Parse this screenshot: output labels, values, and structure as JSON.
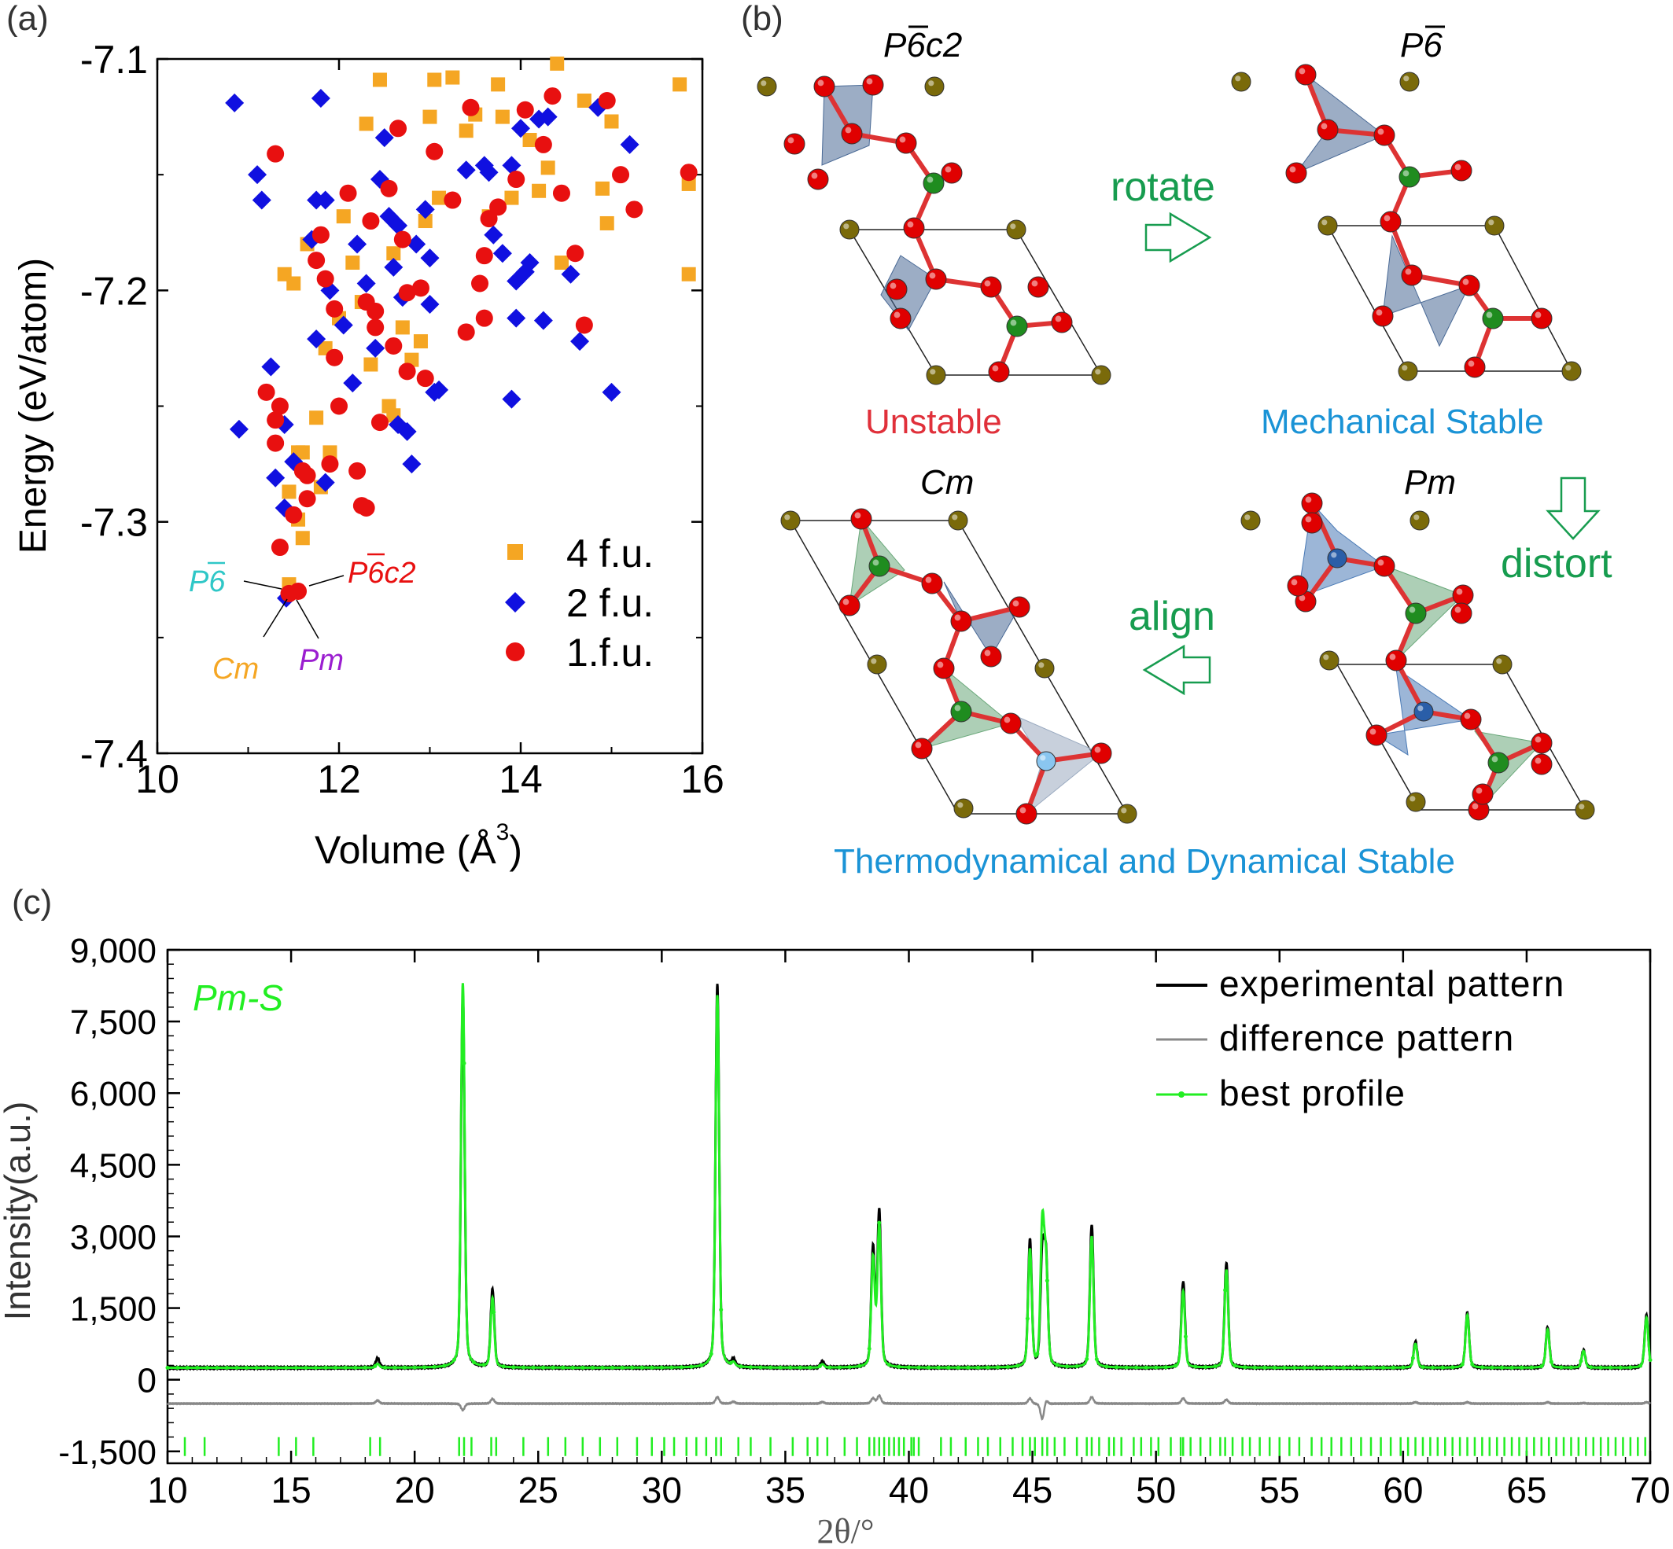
{
  "panels": {
    "a": {
      "label": "(a)"
    },
    "b": {
      "label": "(b)"
    },
    "c": {
      "label": "(c)"
    }
  },
  "colors": {
    "orange": "#f5a623",
    "blue": "#1010e0",
    "red": "#e81010",
    "green_text": "#179c4f",
    "blue_text": "#1a93d6",
    "unstable_red": "#e0303a",
    "best_profile": "#22ee22",
    "difference": "#888888",
    "experimental": "#000000",
    "atom_olive": "#7a6a0a",
    "atom_red": "#e00000",
    "atom_green": "#1f8c1f",
    "tetra_blue": "#4a6a96",
    "tetra_green": "#6aa87a"
  },
  "chart_data": [
    {
      "type": "scatter",
      "panel": "a",
      "title": "",
      "xlabel": "Volume (Å³)",
      "ylabel": "Energy (eV/atom)",
      "xlim": [
        10,
        16
      ],
      "ylim": [
        -7.4,
        -7.1
      ],
      "xticks": [
        10,
        12,
        14,
        16
      ],
      "yticks": [
        -7.1,
        -7.2,
        -7.3,
        -7.4
      ],
      "xtick_labels": [
        "10",
        "12",
        "14",
        "16"
      ],
      "ytick_labels": [
        "-7.1",
        "-7.2",
        "-7.3",
        "-7.4"
      ],
      "legend_position": "bottom-right",
      "series": [
        {
          "name": "4 f.u.",
          "marker": "square",
          "color": "#f5a623",
          "points": [
            [
              11.4,
              -7.193
            ],
            [
              11.5,
              -7.197
            ],
            [
              11.65,
              -7.18
            ],
            [
              11.6,
              -7.27
            ],
            [
              11.75,
              -7.255
            ],
            [
              11.9,
              -7.27
            ],
            [
              11.8,
              -7.285
            ],
            [
              11.45,
              -7.287
            ],
            [
              11.55,
              -7.299
            ],
            [
              11.6,
              -7.307
            ],
            [
              12.05,
              -7.168
            ],
            [
              11.85,
              -7.225
            ],
            [
              12.0,
              -7.212
            ],
            [
              12.15,
              -7.188
            ],
            [
              12.25,
              -7.205
            ],
            [
              12.35,
              -7.232
            ],
            [
              12.3,
              -7.128
            ],
            [
              12.45,
              -7.109
            ],
            [
              12.6,
              -7.184
            ],
            [
              12.7,
              -7.216
            ],
            [
              12.8,
              -7.23
            ],
            [
              12.9,
              -7.222
            ],
            [
              12.95,
              -7.17
            ],
            [
              13.0,
              -7.125
            ],
            [
              13.05,
              -7.109
            ],
            [
              13.1,
              -7.16
            ],
            [
              13.25,
              -7.108
            ],
            [
              13.4,
              -7.131
            ],
            [
              13.5,
              -7.124
            ],
            [
              13.65,
              -7.168
            ],
            [
              13.75,
              -7.111
            ],
            [
              13.8,
              -7.125
            ],
            [
              13.9,
              -7.16
            ],
            [
              14.1,
              -7.135
            ],
            [
              14.2,
              -7.157
            ],
            [
              14.3,
              -7.147
            ],
            [
              14.4,
              -7.102
            ],
            [
              14.45,
              -7.188
            ],
            [
              14.7,
              -7.118
            ],
            [
              14.9,
              -7.156
            ],
            [
              14.95,
              -7.171
            ],
            [
              15.0,
              -7.127
            ],
            [
              15.75,
              -7.111
            ],
            [
              15.85,
              -7.193
            ],
            [
              15.85,
              -7.154
            ],
            [
              12.55,
              -7.25
            ],
            [
              12.6,
              -7.254
            ],
            [
              11.55,
              -7.27
            ],
            [
              11.45,
              -7.327
            ]
          ]
        },
        {
          "name": "2 f.u.",
          "marker": "diamond",
          "color": "#1010e0",
          "points": [
            [
              10.85,
              -7.119
            ],
            [
              11.1,
              -7.15
            ],
            [
              11.15,
              -7.161
            ],
            [
              10.9,
              -7.26
            ],
            [
              11.25,
              -7.233
            ],
            [
              11.3,
              -7.281
            ],
            [
              11.4,
              -7.258
            ],
            [
              11.4,
              -7.294
            ],
            [
              11.5,
              -7.274
            ],
            [
              11.7,
              -7.178
            ],
            [
              11.75,
              -7.161
            ],
            [
              11.8,
              -7.117
            ],
            [
              11.85,
              -7.161
            ],
            [
              11.9,
              -7.2
            ],
            [
              11.75,
              -7.221
            ],
            [
              11.85,
              -7.283
            ],
            [
              12.05,
              -7.215
            ],
            [
              12.15,
              -7.24
            ],
            [
              12.2,
              -7.18
            ],
            [
              12.3,
              -7.197
            ],
            [
              12.4,
              -7.225
            ],
            [
              12.45,
              -7.152
            ],
            [
              12.5,
              -7.134
            ],
            [
              12.55,
              -7.168
            ],
            [
              12.6,
              -7.19
            ],
            [
              12.65,
              -7.172
            ],
            [
              12.7,
              -7.203
            ],
            [
              12.75,
              -7.261
            ],
            [
              12.8,
              -7.275
            ],
            [
              12.85,
              -7.18
            ],
            [
              12.95,
              -7.165
            ],
            [
              13.0,
              -7.186
            ],
            [
              13.0,
              -7.206
            ],
            [
              13.05,
              -7.244
            ],
            [
              13.1,
              -7.243
            ],
            [
              13.4,
              -7.148
            ],
            [
              13.6,
              -7.146
            ],
            [
              13.65,
              -7.149
            ],
            [
              13.7,
              -7.176
            ],
            [
              13.8,
              -7.184
            ],
            [
              13.9,
              -7.146
            ],
            [
              13.95,
              -7.196
            ],
            [
              14.0,
              -7.13
            ],
            [
              14.05,
              -7.192
            ],
            [
              14.1,
              -7.188
            ],
            [
              14.2,
              -7.126
            ],
            [
              14.25,
              -7.213
            ],
            [
              14.3,
              -7.125
            ],
            [
              14.55,
              -7.193
            ],
            [
              14.65,
              -7.222
            ],
            [
              14.85,
              -7.121
            ],
            [
              15.0,
              -7.244
            ],
            [
              15.2,
              -7.137
            ],
            [
              12.65,
              -7.258
            ],
            [
              13.9,
              -7.247
            ],
            [
              13.95,
              -7.212
            ],
            [
              11.42,
              -7.333
            ]
          ]
        },
        {
          "name": "1.f.u.",
          "marker": "circle",
          "color": "#e81010",
          "points": [
            [
              11.3,
              -7.141
            ],
            [
              11.2,
              -7.244
            ],
            [
              11.3,
              -7.256
            ],
            [
              11.35,
              -7.25
            ],
            [
              11.3,
              -7.266
            ],
            [
              11.35,
              -7.311
            ],
            [
              11.5,
              -7.297
            ],
            [
              11.6,
              -7.278
            ],
            [
              11.65,
              -7.28
            ],
            [
              11.65,
              -7.29
            ],
            [
              11.75,
              -7.187
            ],
            [
              11.8,
              -7.176
            ],
            [
              11.85,
              -7.195
            ],
            [
              11.9,
              -7.275
            ],
            [
              11.95,
              -7.229
            ],
            [
              12.0,
              -7.25
            ],
            [
              12.1,
              -7.158
            ],
            [
              12.2,
              -7.278
            ],
            [
              12.25,
              -7.293
            ],
            [
              12.3,
              -7.294
            ],
            [
              12.35,
              -7.17
            ],
            [
              12.4,
              -7.209
            ],
            [
              12.4,
              -7.216
            ],
            [
              12.45,
              -7.257
            ],
            [
              12.55,
              -7.156
            ],
            [
              12.6,
              -7.224
            ],
            [
              12.65,
              -7.13
            ],
            [
              12.7,
              -7.178
            ],
            [
              12.75,
              -7.201
            ],
            [
              12.75,
              -7.235
            ],
            [
              12.9,
              -7.199
            ],
            [
              12.95,
              -7.238
            ],
            [
              13.05,
              -7.14
            ],
            [
              13.25,
              -7.161
            ],
            [
              13.4,
              -7.218
            ],
            [
              13.45,
              -7.121
            ],
            [
              13.55,
              -7.197
            ],
            [
              13.6,
              -7.212
            ],
            [
              13.6,
              -7.185
            ],
            [
              13.65,
              -7.169
            ],
            [
              13.75,
              -7.164
            ],
            [
              13.95,
              -7.152
            ],
            [
              14.05,
              -7.122
            ],
            [
              14.25,
              -7.137
            ],
            [
              14.35,
              -7.116
            ],
            [
              14.45,
              -7.158
            ],
            [
              14.6,
              -7.184
            ],
            [
              14.7,
              -7.215
            ],
            [
              14.95,
              -7.118
            ],
            [
              15.1,
              -7.15
            ],
            [
              15.25,
              -7.165
            ],
            [
              15.85,
              -7.149
            ],
            [
              12.3,
              -7.205
            ],
            [
              11.95,
              -7.208
            ],
            [
              11.55,
              -7.33
            ],
            [
              11.45,
              -7.331
            ]
          ]
        }
      ],
      "annotations": [
        {
          "text": "P6̄",
          "color": "#2fc7c7",
          "at": [
            11.42,
            -7.331
          ]
        },
        {
          "text": "P6̄c2",
          "color": "#e81010",
          "at": [
            11.55,
            -7.33
          ]
        },
        {
          "text": "Cm",
          "color": "#f5a623",
          "at": [
            11.45,
            -7.332
          ]
        },
        {
          "text": "Pm",
          "color": "#9b1ed0",
          "at": [
            11.5,
            -7.333
          ]
        }
      ]
    },
    {
      "type": "line",
      "panel": "c",
      "title": "",
      "xlabel": "2θ/°",
      "ylabel": "Intensity(a.u.)",
      "xlim": [
        10,
        70
      ],
      "ylim": [
        -1750,
        9000
      ],
      "xticks": [
        10,
        15,
        20,
        25,
        30,
        35,
        40,
        45,
        50,
        55,
        60,
        65,
        70
      ],
      "yticks": [
        -1500,
        0,
        1500,
        3000,
        4500,
        6000,
        7500,
        9000
      ],
      "ytick_labels": [
        "-1,500",
        "0",
        "1,500",
        "3,000",
        "4,500",
        "6,000",
        "7,500",
        "9,000"
      ],
      "legend_position": "top-right",
      "baseline": 250,
      "difference_offset": -500,
      "tick_mark_y": -1400,
      "series": [
        {
          "name": "experimental pattern",
          "color": "#000000"
        },
        {
          "name": "difference pattern",
          "color": "#888888"
        },
        {
          "name": "best profile",
          "color": "#22ee22"
        }
      ],
      "peaks": [
        {
          "x": 18.5,
          "exp": 450,
          "fit": 330
        },
        {
          "x": 21.95,
          "exp": 8050,
          "fit": 8300
        },
        {
          "x": 23.15,
          "exp": 1880,
          "fit": 1700
        },
        {
          "x": 32.25,
          "exp": 8300,
          "fit": 8050
        },
        {
          "x": 32.9,
          "exp": 400,
          "fit": 330
        },
        {
          "x": 36.5,
          "exp": 380,
          "fit": 320
        },
        {
          "x": 38.55,
          "exp": 2700,
          "fit": 2500
        },
        {
          "x": 38.8,
          "exp": 3500,
          "fit": 3200
        },
        {
          "x": 44.9,
          "exp": 2900,
          "fit": 2700
        },
        {
          "x": 45.4,
          "exp": 2550,
          "fit": 3150
        },
        {
          "x": 45.55,
          "exp": 2450,
          "fit": 2300
        },
        {
          "x": 47.4,
          "exp": 3250,
          "fit": 3000
        },
        {
          "x": 51.1,
          "exp": 2050,
          "fit": 1850
        },
        {
          "x": 52.85,
          "exp": 2450,
          "fit": 2300
        },
        {
          "x": 60.5,
          "exp": 800,
          "fit": 750
        },
        {
          "x": 62.6,
          "exp": 1400,
          "fit": 1350
        },
        {
          "x": 65.85,
          "exp": 1100,
          "fit": 1050
        },
        {
          "x": 67.3,
          "exp": 620,
          "fit": 600
        },
        {
          "x": 69.85,
          "exp": 1350,
          "fit": 1300
        }
      ],
      "reflection_ticks": [
        10.7,
        11.5,
        14.5,
        15.2,
        15.9,
        18.2,
        18.6,
        21.8,
        22.0,
        22.3,
        23.1,
        23.3,
        24.4,
        25.4,
        26.1,
        26.8,
        27.5,
        28.2,
        29.0,
        29.6,
        30.1,
        30.5,
        31.0,
        31.4,
        31.8,
        32.2,
        32.4,
        33.1,
        33.6,
        34.4,
        35.3,
        35.9,
        36.3,
        36.7,
        37.4,
        37.9,
        38.4,
        38.6,
        38.8,
        39.0,
        39.2,
        39.4,
        39.6,
        39.8,
        40.1,
        40.2,
        40.4,
        41.3,
        41.7,
        42.3,
        42.8,
        43.2,
        43.7,
        44.2,
        44.6,
        44.9,
        45.1,
        45.4,
        45.6,
        45.9,
        46.3,
        46.8,
        47.2,
        47.4,
        47.7,
        48.1,
        48.3,
        48.6,
        49.1,
        49.4,
        49.8,
        50.1,
        50.6,
        51.0,
        51.1,
        51.4,
        51.8,
        52.2,
        52.6,
        52.8,
        53.1,
        53.5,
        53.8,
        54.2,
        54.6,
        55.0,
        55.4,
        55.8,
        56.3,
        56.7,
        57.1,
        57.5,
        57.9,
        58.3,
        58.7,
        59.1,
        59.5,
        59.9,
        60.2,
        60.5,
        60.8,
        61.1,
        61.4,
        61.7,
        62.0,
        62.3,
        62.6,
        62.9,
        63.2,
        63.5,
        63.8,
        64.1,
        64.4,
        64.7,
        65.0,
        65.3,
        65.6,
        65.9,
        66.2,
        66.5,
        66.8,
        67.1,
        67.4,
        67.7,
        68.0,
        68.3,
        68.6,
        68.9,
        69.2,
        69.5,
        69.8
      ]
    }
  ],
  "panel_a": {
    "xlabel": "Volume (Å",
    "xlabel_sup": "3",
    "xlabel_end": ")",
    "ylabel": "Energy (eV/atom)",
    "legend": [
      "4 f.u.",
      "2 f.u.",
      "1.f.u."
    ],
    "ann_p6": "P6",
    "ann_p6c2": "P6c2",
    "ann_cm": "Cm",
    "ann_pm": "Pm"
  },
  "panel_b": {
    "titles": {
      "p6c2": "P6c2",
      "p6": "P6",
      "cm": "Cm",
      "pm": "Pm"
    },
    "status": {
      "unstable": "Unstable",
      "mechanical": "Mechanical Stable",
      "thermo": "Thermodynamical and Dynamical Stable"
    },
    "arrows": {
      "rotate": "rotate",
      "distort": "distort",
      "align": "align"
    }
  },
  "panel_c": {
    "inset": "Pm-S",
    "xlabel": "2θ/°",
    "ylabel": "Intensity(a.u.)",
    "legend": [
      "experimental pattern",
      "difference pattern",
      "best profile"
    ]
  }
}
